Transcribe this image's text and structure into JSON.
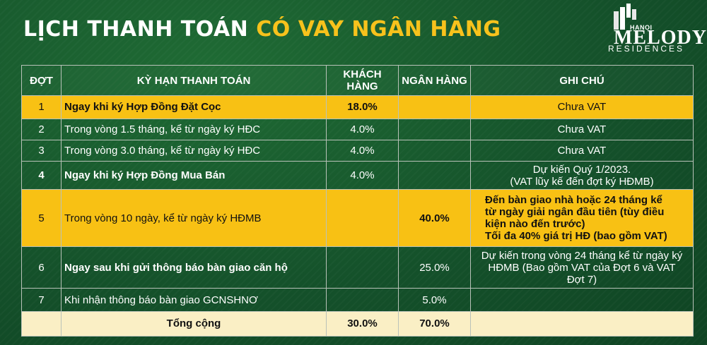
{
  "title": {
    "part1": "LỊCH THANH TOÁN",
    "part2": "CÓ VAY NGÂN HÀNG"
  },
  "logo": {
    "top": "HANOI",
    "main": "MELODY",
    "bottom": "RESIDENCES"
  },
  "headers": [
    "ĐỢT",
    "KỲ HẠN THANH TOÁN",
    "KHÁCH HÀNG",
    "NGÂN HÀNG",
    "GHI CHÚ"
  ],
  "rows": [
    {
      "dot": "1",
      "term": "Ngay khi ký Hợp Đồng Đặt Cọc",
      "customer": "18.0%",
      "bank": "",
      "note": "Chưa VAT"
    },
    {
      "dot": "2",
      "term": "Trong vòng 1.5 tháng, kể từ ngày ký HĐC",
      "customer": "4.0%",
      "bank": "",
      "note": "Chưa VAT"
    },
    {
      "dot": "3",
      "term": "Trong vòng 3.0 tháng, kể từ ngày ký HĐC",
      "customer": "4.0%",
      "bank": "",
      "note": "Chưa VAT"
    },
    {
      "dot": "4",
      "term": "Ngay khi ký Hợp Đồng Mua Bán",
      "customer": "4.0%",
      "bank": "",
      "note1": "Dự kiến Quý 1/2023.",
      "note2": "(VAT lũy kế đến đợt ký HĐMB)"
    },
    {
      "dot": "5",
      "term": "Trong vòng 10 ngày, kể từ ngày ký HĐMB",
      "customer": "",
      "bank": "40.0%",
      "note1": "Đến bàn giao nhà hoặc 24 tháng kể",
      "note2": "từ ngày giải ngân đầu tiên (tùy điều",
      "note3": "kiện nào đến trước)",
      "note4": "Tối đa 40% giá trị HĐ (bao gồm VAT)"
    },
    {
      "dot": "6",
      "term": "Ngay sau khi gửi thông báo bàn giao căn hộ",
      "customer": "",
      "bank": "25.0%",
      "note1": "Dự kiến trong vòng 24 tháng kể từ ngày ký",
      "note2": "HĐMB (Bao gồm VAT của Đợt 6 và VAT",
      "note3": "Đợt 7)"
    },
    {
      "dot": "7",
      "term": "Khi nhận thông báo bàn giao GCNSHNƠ",
      "customer": "",
      "bank": "5.0%",
      "note": ""
    }
  ],
  "total": {
    "label": "Tổng cộng",
    "customer": "30.0%",
    "bank": "70.0%"
  }
}
